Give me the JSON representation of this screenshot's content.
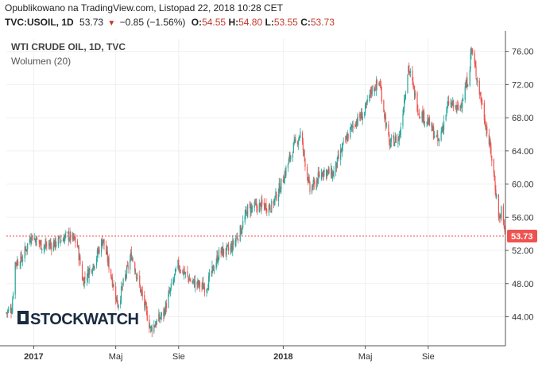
{
  "header": {
    "published": "Opublikowano na TradingView.com, Listopad 22, 2018 10:28 CET",
    "symbol": "TVC:USOIL, 1D",
    "last": "53.73",
    "change": "−0.85 (−1.56%)",
    "open_label": "O:",
    "open": "54.55",
    "high_label": "H:",
    "high": "54.80",
    "low_label": "L:",
    "low": "53.55",
    "close_label": "C:",
    "close": "53.73"
  },
  "legend": {
    "title": "WTI CRUDE OIL, 1D, TVC",
    "volume": "Wolumen (20)"
  },
  "logo": {
    "text": "STOCKWATCH"
  },
  "colors": {
    "up": "#26a69a",
    "down": "#ef5350",
    "last_price": "#ef5350",
    "grid": "#eef0f3",
    "axis": "#555555"
  },
  "chart_data": {
    "type": "candlestick",
    "title": "WTI CRUDE OIL, 1D, TVC",
    "x_start": "2016-11-22",
    "x_end": "2018-11-22",
    "x_ticks": [
      {
        "label": "2017",
        "date": "2017-01-01",
        "bold": true
      },
      {
        "label": "Maj",
        "date": "2017-05-01",
        "bold": false
      },
      {
        "label": "Sie",
        "date": "2017-08-01",
        "bold": false
      },
      {
        "label": "2018",
        "date": "2018-01-01",
        "bold": true
      },
      {
        "label": "Maj",
        "date": "2018-05-01",
        "bold": false
      },
      {
        "label": "Sie",
        "date": "2018-08-01",
        "bold": false
      }
    ],
    "y_ticks": [
      "76.00",
      "72.00",
      "68.00",
      "64.00",
      "60.00",
      "56.00",
      "52.00",
      "48.00",
      "44.00"
    ],
    "ylim": [
      40.5,
      77.5
    ],
    "last_price": 53.73,
    "last_price_label": "53.73",
    "series_close": [
      {
        "date": "2016-11-22",
        "v": 44.5
      },
      {
        "date": "2016-11-30",
        "v": 45.0
      },
      {
        "date": "2016-12-05",
        "v": 50.5
      },
      {
        "date": "2016-12-15",
        "v": 51.0
      },
      {
        "date": "2016-12-28",
        "v": 53.8
      },
      {
        "date": "2017-01-15",
        "v": 52.5
      },
      {
        "date": "2017-01-31",
        "v": 52.8
      },
      {
        "date": "2017-02-20",
        "v": 53.8
      },
      {
        "date": "2017-03-05",
        "v": 53.0
      },
      {
        "date": "2017-03-14",
        "v": 48.3
      },
      {
        "date": "2017-03-31",
        "v": 50.6
      },
      {
        "date": "2017-04-12",
        "v": 53.4
      },
      {
        "date": "2017-05-04",
        "v": 45.5
      },
      {
        "date": "2017-05-24",
        "v": 51.5
      },
      {
        "date": "2017-06-21",
        "v": 42.5
      },
      {
        "date": "2017-07-10",
        "v": 44.4
      },
      {
        "date": "2017-07-31",
        "v": 50.2
      },
      {
        "date": "2017-08-20",
        "v": 48.2
      },
      {
        "date": "2017-09-10",
        "v": 47.5
      },
      {
        "date": "2017-09-30",
        "v": 51.8
      },
      {
        "date": "2017-10-15",
        "v": 52.0
      },
      {
        "date": "2017-10-31",
        "v": 54.5
      },
      {
        "date": "2017-11-10",
        "v": 57.0
      },
      {
        "date": "2017-11-30",
        "v": 57.4
      },
      {
        "date": "2017-12-15",
        "v": 57.3
      },
      {
        "date": "2017-12-31",
        "v": 60.4
      },
      {
        "date": "2018-01-15",
        "v": 64.3
      },
      {
        "date": "2018-01-26",
        "v": 66.1
      },
      {
        "date": "2018-02-09",
        "v": 59.2
      },
      {
        "date": "2018-02-28",
        "v": 61.6
      },
      {
        "date": "2018-03-15",
        "v": 61.2
      },
      {
        "date": "2018-03-31",
        "v": 64.9
      },
      {
        "date": "2018-04-15",
        "v": 67.4
      },
      {
        "date": "2018-04-30",
        "v": 68.6
      },
      {
        "date": "2018-05-10",
        "v": 71.4
      },
      {
        "date": "2018-05-22",
        "v": 72.2
      },
      {
        "date": "2018-06-05",
        "v": 64.8
      },
      {
        "date": "2018-06-20",
        "v": 65.7
      },
      {
        "date": "2018-07-03",
        "v": 74.2
      },
      {
        "date": "2018-07-18",
        "v": 68.8
      },
      {
        "date": "2018-08-01",
        "v": 67.5
      },
      {
        "date": "2018-08-16",
        "v": 65.0
      },
      {
        "date": "2018-08-31",
        "v": 69.8
      },
      {
        "date": "2018-09-15",
        "v": 68.9
      },
      {
        "date": "2018-09-30",
        "v": 73.2
      },
      {
        "date": "2018-10-03",
        "v": 76.4
      },
      {
        "date": "2018-10-20",
        "v": 69.0
      },
      {
        "date": "2018-11-01",
        "v": 63.7
      },
      {
        "date": "2018-11-13",
        "v": 55.7
      },
      {
        "date": "2018-11-16",
        "v": 56.8
      },
      {
        "date": "2018-11-22",
        "v": 53.73
      }
    ]
  }
}
